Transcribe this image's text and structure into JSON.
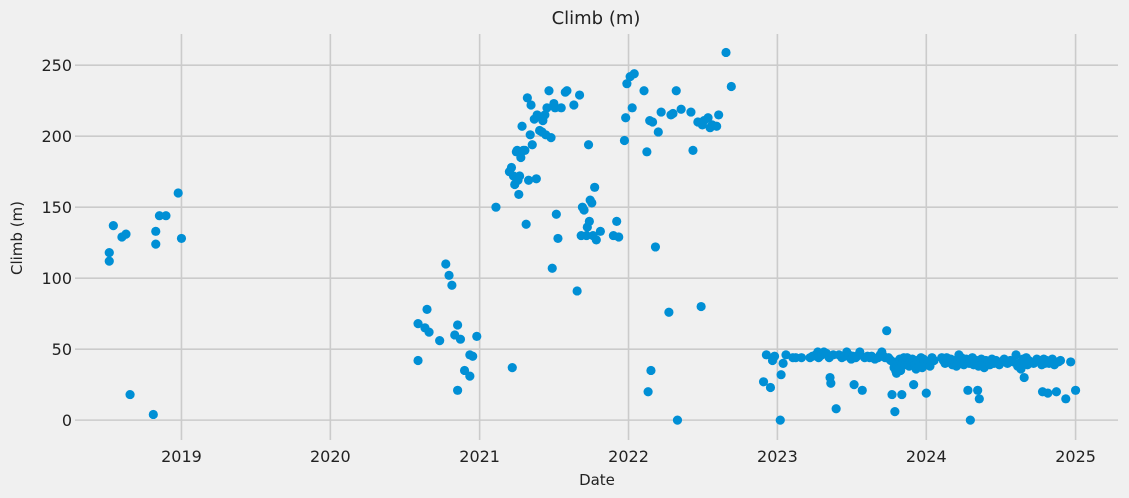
{
  "chart_data": {
    "type": "scatter",
    "title": "Climb (m)",
    "xlabel": "Date",
    "ylabel": "Climb (m)",
    "xlim": [
      "2018-04-15",
      "2025-04-15"
    ],
    "ylim": [
      -14,
      272
    ],
    "xticks": [
      {
        "date": "2019-01-01",
        "label": "2019"
      },
      {
        "date": "2020-01-01",
        "label": "2020"
      },
      {
        "date": "2021-01-01",
        "label": "2021"
      },
      {
        "date": "2022-01-01",
        "label": "2022"
      },
      {
        "date": "2023-01-01",
        "label": "2023"
      },
      {
        "date": "2024-01-01",
        "label": "2024"
      },
      {
        "date": "2025-01-01",
        "label": "2025"
      }
    ],
    "yticks": [
      0,
      50,
      100,
      150,
      200,
      250
    ],
    "grid": true,
    "marker_color": "#008fd5",
    "background_color": "#f0f0f0",
    "grid_color": "#cbcbcb",
    "points": [
      [
        "2018-07-08",
        112
      ],
      [
        "2018-07-08",
        118
      ],
      [
        "2018-07-18",
        137
      ],
      [
        "2018-08-08",
        129
      ],
      [
        "2018-08-18",
        131
      ],
      [
        "2018-08-28",
        18
      ],
      [
        "2018-10-24",
        4
      ],
      [
        "2018-10-30",
        133
      ],
      [
        "2018-10-30",
        124
      ],
      [
        "2018-11-08",
        144
      ],
      [
        "2018-11-24",
        144
      ],
      [
        "2018-12-24",
        160
      ],
      [
        "2019-01-01",
        128
      ],
      [
        "2020-08-03",
        42
      ],
      [
        "2020-08-03",
        68
      ],
      [
        "2020-08-20",
        65
      ],
      [
        "2020-08-25",
        78
      ],
      [
        "2020-08-30",
        62
      ],
      [
        "2020-09-25",
        56
      ],
      [
        "2020-10-10",
        110
      ],
      [
        "2020-10-18",
        102
      ],
      [
        "2020-10-25",
        95
      ],
      [
        "2020-11-01",
        60
      ],
      [
        "2020-11-08",
        67
      ],
      [
        "2020-11-08",
        21
      ],
      [
        "2020-11-15",
        57
      ],
      [
        "2020-11-25",
        35
      ],
      [
        "2020-12-08",
        31
      ],
      [
        "2020-12-08",
        46
      ],
      [
        "2020-12-15",
        45
      ],
      [
        "2020-12-25",
        59
      ],
      [
        "2021-02-10",
        150
      ],
      [
        "2021-03-15",
        175
      ],
      [
        "2021-03-20",
        178
      ],
      [
        "2021-03-22",
        37
      ],
      [
        "2021-03-25",
        172
      ],
      [
        "2021-03-28",
        166
      ],
      [
        "2021-04-01",
        189
      ],
      [
        "2021-04-03",
        190
      ],
      [
        "2021-04-05",
        169
      ],
      [
        "2021-04-07",
        159
      ],
      [
        "2021-04-09",
        172
      ],
      [
        "2021-04-12",
        185
      ],
      [
        "2021-04-15",
        207
      ],
      [
        "2021-04-18",
        190
      ],
      [
        "2021-04-22",
        190
      ],
      [
        "2021-04-25",
        138
      ],
      [
        "2021-04-28",
        227
      ],
      [
        "2021-05-01",
        169
      ],
      [
        "2021-05-05",
        201
      ],
      [
        "2021-05-07",
        222
      ],
      [
        "2021-05-10",
        194
      ],
      [
        "2021-05-15",
        212
      ],
      [
        "2021-05-20",
        170
      ],
      [
        "2021-05-22",
        215
      ],
      [
        "2021-05-28",
        204
      ],
      [
        "2021-06-03",
        203
      ],
      [
        "2021-06-05",
        211
      ],
      [
        "2021-06-10",
        215
      ],
      [
        "2021-06-12",
        201
      ],
      [
        "2021-06-15",
        220
      ],
      [
        "2021-06-20",
        232
      ],
      [
        "2021-06-25",
        199
      ],
      [
        "2021-06-28",
        107
      ],
      [
        "2021-07-02",
        223
      ],
      [
        "2021-07-05",
        220
      ],
      [
        "2021-07-08",
        145
      ],
      [
        "2021-07-12",
        128
      ],
      [
        "2021-07-20",
        220
      ],
      [
        "2021-07-30",
        231
      ],
      [
        "2021-08-03",
        232
      ],
      [
        "2021-08-20",
        222
      ],
      [
        "2021-08-28",
        91
      ],
      [
        "2021-09-03",
        229
      ],
      [
        "2021-09-07",
        130
      ],
      [
        "2021-09-10",
        150
      ],
      [
        "2021-09-14",
        148
      ],
      [
        "2021-09-20",
        130
      ],
      [
        "2021-09-22",
        136
      ],
      [
        "2021-09-25",
        194
      ],
      [
        "2021-09-27",
        140
      ],
      [
        "2021-09-29",
        155
      ],
      [
        "2021-10-03",
        153
      ],
      [
        "2021-10-06",
        130
      ],
      [
        "2021-10-10",
        164
      ],
      [
        "2021-10-14",
        127
      ],
      [
        "2021-10-24",
        133
      ],
      [
        "2021-11-25",
        130
      ],
      [
        "2021-12-03",
        140
      ],
      [
        "2021-12-08",
        129
      ],
      [
        "2021-12-22",
        197
      ],
      [
        "2021-12-25",
        213
      ],
      [
        "2021-12-28",
        237
      ],
      [
        "2022-01-05",
        242
      ],
      [
        "2022-01-10",
        220
      ],
      [
        "2022-01-15",
        244
      ],
      [
        "2022-02-08",
        232
      ],
      [
        "2022-02-15",
        189
      ],
      [
        "2022-02-18",
        20
      ],
      [
        "2022-02-22",
        211
      ],
      [
        "2022-02-25",
        35
      ],
      [
        "2022-03-01",
        210
      ],
      [
        "2022-03-08",
        122
      ],
      [
        "2022-03-15",
        203
      ],
      [
        "2022-03-22",
        217
      ],
      [
        "2022-04-10",
        76
      ],
      [
        "2022-04-15",
        215
      ],
      [
        "2022-04-20",
        216
      ],
      [
        "2022-04-28",
        232
      ],
      [
        "2022-05-01",
        0
      ],
      [
        "2022-05-10",
        219
      ],
      [
        "2022-06-03",
        217
      ],
      [
        "2022-06-08",
        190
      ],
      [
        "2022-06-20",
        210
      ],
      [
        "2022-06-28",
        80
      ],
      [
        "2022-07-01",
        208
      ],
      [
        "2022-07-05",
        211
      ],
      [
        "2022-07-15",
        213
      ],
      [
        "2022-07-20",
        206
      ],
      [
        "2022-07-25",
        208
      ],
      [
        "2022-08-05",
        207
      ],
      [
        "2022-08-10",
        215
      ],
      [
        "2022-08-28",
        259
      ],
      [
        "2022-09-10",
        235
      ],
      [
        "2022-11-28",
        27
      ],
      [
        "2022-12-05",
        46
      ],
      [
        "2022-12-15",
        23
      ],
      [
        "2022-12-20",
        42
      ],
      [
        "2022-12-25",
        45
      ],
      [
        "2023-01-08",
        0
      ],
      [
        "2023-01-10",
        32
      ],
      [
        "2023-01-15",
        40
      ],
      [
        "2023-01-22",
        46
      ],
      [
        "2023-02-08",
        44
      ],
      [
        "2023-02-15",
        44
      ],
      [
        "2023-03-01",
        44
      ],
      [
        "2023-03-22",
        44
      ],
      [
        "2023-03-28",
        45
      ],
      [
        "2023-04-05",
        46
      ],
      [
        "2023-04-10",
        48
      ],
      [
        "2023-04-12",
        44
      ],
      [
        "2023-04-15",
        45
      ],
      [
        "2023-04-20",
        46
      ],
      [
        "2023-04-25",
        48
      ],
      [
        "2023-05-01",
        47
      ],
      [
        "2023-05-08",
        44
      ],
      [
        "2023-05-10",
        30
      ],
      [
        "2023-05-12",
        26
      ],
      [
        "2023-05-18",
        46
      ],
      [
        "2023-05-25",
        8
      ],
      [
        "2023-06-01",
        46
      ],
      [
        "2023-06-08",
        44
      ],
      [
        "2023-06-15",
        45
      ],
      [
        "2023-06-20",
        48
      ],
      [
        "2023-06-25",
        46
      ],
      [
        "2023-07-01",
        43
      ],
      [
        "2023-07-05",
        45
      ],
      [
        "2023-07-08",
        25
      ],
      [
        "2023-07-12",
        44
      ],
      [
        "2023-07-15",
        45
      ],
      [
        "2023-07-22",
        48
      ],
      [
        "2023-07-28",
        21
      ],
      [
        "2023-08-03",
        44
      ],
      [
        "2023-08-10",
        45
      ],
      [
        "2023-08-15",
        44
      ],
      [
        "2023-08-20",
        45
      ],
      [
        "2023-08-28",
        43
      ],
      [
        "2023-09-05",
        44
      ],
      [
        "2023-09-10",
        46
      ],
      [
        "2023-09-14",
        48
      ],
      [
        "2023-09-18",
        45
      ],
      [
        "2023-09-22",
        44
      ],
      [
        "2023-09-26",
        63
      ],
      [
        "2023-09-30",
        44
      ],
      [
        "2023-10-03",
        43
      ],
      [
        "2023-10-06",
        42
      ],
      [
        "2023-10-09",
        18
      ],
      [
        "2023-10-12",
        41
      ],
      [
        "2023-10-14",
        37
      ],
      [
        "2023-10-16",
        6
      ],
      [
        "2023-10-18",
        35
      ],
      [
        "2023-10-20",
        33
      ],
      [
        "2023-10-22",
        39
      ],
      [
        "2023-10-24",
        41
      ],
      [
        "2023-10-26",
        36
      ],
      [
        "2023-10-28",
        43
      ],
      [
        "2023-10-30",
        35
      ],
      [
        "2023-11-02",
        18
      ],
      [
        "2023-11-03",
        40
      ],
      [
        "2023-11-05",
        41
      ],
      [
        "2023-11-07",
        44
      ],
      [
        "2023-11-10",
        39
      ],
      [
        "2023-11-12",
        42
      ],
      [
        "2023-11-15",
        44
      ],
      [
        "2023-11-18",
        40
      ],
      [
        "2023-11-20",
        38
      ],
      [
        "2023-11-22",
        42
      ],
      [
        "2023-11-25",
        41
      ],
      [
        "2023-11-28",
        43
      ],
      [
        "2023-12-01",
        25
      ],
      [
        "2023-12-04",
        39
      ],
      [
        "2023-12-07",
        36
      ],
      [
        "2023-12-10",
        42
      ],
      [
        "2023-12-13",
        38
      ],
      [
        "2023-12-16",
        40
      ],
      [
        "2023-12-19",
        44
      ],
      [
        "2023-12-22",
        37
      ],
      [
        "2023-12-25",
        43
      ],
      [
        "2023-12-28",
        41
      ],
      [
        "2024-01-01",
        19
      ],
      [
        "2024-01-05",
        40
      ],
      [
        "2024-01-10",
        38
      ],
      [
        "2024-01-15",
        44
      ],
      [
        "2024-01-20",
        42
      ],
      [
        "2024-02-08",
        44
      ],
      [
        "2024-02-12",
        42
      ],
      [
        "2024-02-16",
        40
      ],
      [
        "2024-02-20",
        44
      ],
      [
        "2024-02-25",
        41
      ],
      [
        "2024-03-01",
        43
      ],
      [
        "2024-03-05",
        39
      ],
      [
        "2024-03-08",
        42
      ],
      [
        "2024-03-12",
        40
      ],
      [
        "2024-03-15",
        38
      ],
      [
        "2024-03-18",
        42
      ],
      [
        "2024-03-21",
        46
      ],
      [
        "2024-03-24",
        40
      ],
      [
        "2024-03-27",
        44
      ],
      [
        "2024-03-30",
        42
      ],
      [
        "2024-04-02",
        39
      ],
      [
        "2024-04-05",
        41
      ],
      [
        "2024-04-08",
        43
      ],
      [
        "2024-04-12",
        21
      ],
      [
        "2024-04-15",
        40
      ],
      [
        "2024-04-18",
        0
      ],
      [
        "2024-04-20",
        42
      ],
      [
        "2024-04-23",
        44
      ],
      [
        "2024-04-26",
        39
      ],
      [
        "2024-04-29",
        41
      ],
      [
        "2024-05-03",
        42
      ],
      [
        "2024-05-06",
        21
      ],
      [
        "2024-05-08",
        38
      ],
      [
        "2024-05-10",
        15
      ],
      [
        "2024-05-12",
        41
      ],
      [
        "2024-05-15",
        43
      ],
      [
        "2024-05-18",
        40
      ],
      [
        "2024-05-22",
        37
      ],
      [
        "2024-05-26",
        42
      ],
      [
        "2024-06-01",
        41
      ],
      [
        "2024-06-05",
        39
      ],
      [
        "2024-06-10",
        43
      ],
      [
        "2024-06-15",
        40
      ],
      [
        "2024-06-20",
        42
      ],
      [
        "2024-06-28",
        39
      ],
      [
        "2024-07-05",
        41
      ],
      [
        "2024-07-10",
        43
      ],
      [
        "2024-07-18",
        40
      ],
      [
        "2024-07-25",
        42
      ],
      [
        "2024-08-01",
        41
      ],
      [
        "2024-08-08",
        46
      ],
      [
        "2024-08-12",
        38
      ],
      [
        "2024-08-15",
        40
      ],
      [
        "2024-08-20",
        36
      ],
      [
        "2024-08-25",
        43
      ],
      [
        "2024-08-28",
        30
      ],
      [
        "2024-09-02",
        44
      ],
      [
        "2024-09-05",
        39
      ],
      [
        "2024-09-08",
        42
      ],
      [
        "2024-09-20",
        40
      ],
      [
        "2024-09-28",
        43
      ],
      [
        "2024-10-05",
        42
      ],
      [
        "2024-10-10",
        39
      ],
      [
        "2024-10-12",
        20
      ],
      [
        "2024-10-15",
        43
      ],
      [
        "2024-10-18",
        40
      ],
      [
        "2024-10-22",
        42
      ],
      [
        "2024-10-25",
        19
      ],
      [
        "2024-10-28",
        40
      ],
      [
        "2024-11-01",
        41
      ],
      [
        "2024-11-05",
        43
      ],
      [
        "2024-11-10",
        39
      ],
      [
        "2024-11-15",
        20
      ],
      [
        "2024-11-20",
        41
      ],
      [
        "2024-11-25",
        42
      ],
      [
        "2024-12-08",
        15
      ],
      [
        "2024-12-20",
        41
      ],
      [
        "2025-01-01",
        21
      ]
    ]
  }
}
